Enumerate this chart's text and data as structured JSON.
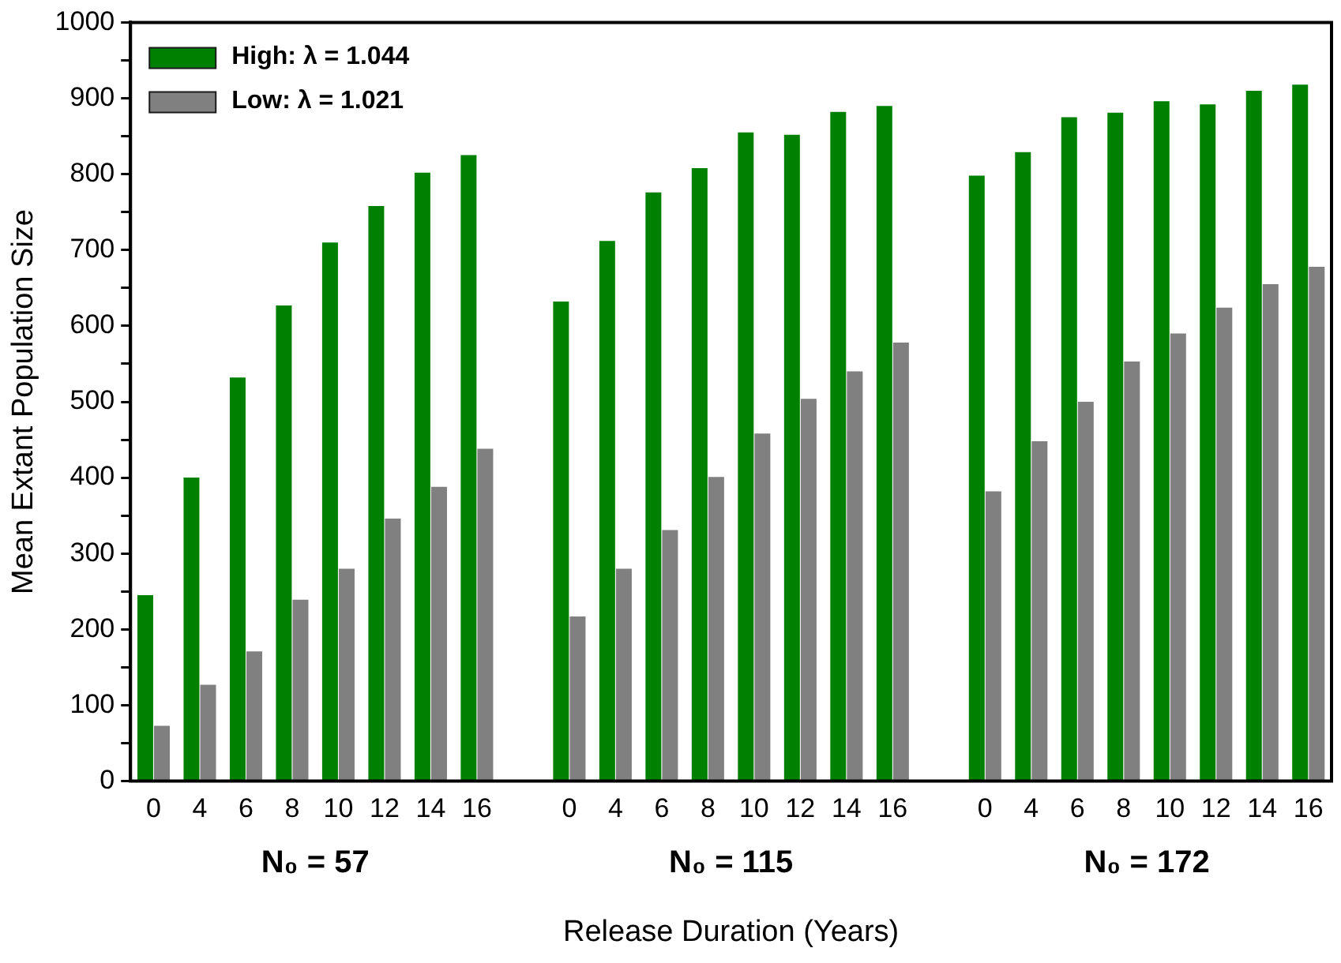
{
  "chart_data": {
    "type": "bar",
    "ylabel": "Mean Extant Population Size",
    "xlabel": "Release Duration (Years)",
    "categories": [
      "0",
      "4",
      "6",
      "8",
      "10",
      "12",
      "14",
      "16",
      null,
      "0",
      "4",
      "6",
      "8",
      "10",
      "12",
      "14",
      "16",
      null,
      "0",
      "4",
      "6",
      "8",
      "10",
      "12",
      "14",
      "16"
    ],
    "series": [
      {
        "name": "High: λ = 1.044",
        "color": "#008000",
        "values": [
          245,
          400,
          532,
          627,
          710,
          758,
          802,
          825,
          null,
          632,
          712,
          776,
          808,
          855,
          852,
          882,
          890,
          null,
          798,
          829,
          875,
          881,
          896,
          892,
          910,
          918
        ]
      },
      {
        "name": "Low: λ = 1.021",
        "color": "#808080",
        "values": [
          73,
          127,
          171,
          239,
          280,
          346,
          388,
          438,
          null,
          217,
          280,
          331,
          401,
          458,
          504,
          540,
          578,
          null,
          382,
          448,
          500,
          553,
          590,
          624,
          655,
          678
        ]
      }
    ],
    "ylim": [
      0,
      1000
    ],
    "yticks": [
      0,
      {
        "value": 50,
        "label": null
      },
      100,
      {
        "value": 150,
        "label": null
      },
      200,
      {
        "value": 250,
        "label": null
      },
      300,
      {
        "value": 350,
        "label": null
      },
      400,
      {
        "value": 450,
        "label": null
      },
      500,
      {
        "value": 550,
        "label": null
      },
      600,
      {
        "value": 650,
        "label": null
      },
      700,
      {
        "value": 750,
        "label": null
      },
      800,
      {
        "value": 850,
        "label": null
      },
      900,
      {
        "value": 950,
        "label": null
      },
      1000
    ],
    "annotations": [
      "N₀ = 57",
      "N₀ = 115",
      "N₀ = 172"
    ],
    "legend": "top left",
    "grid": false
  }
}
